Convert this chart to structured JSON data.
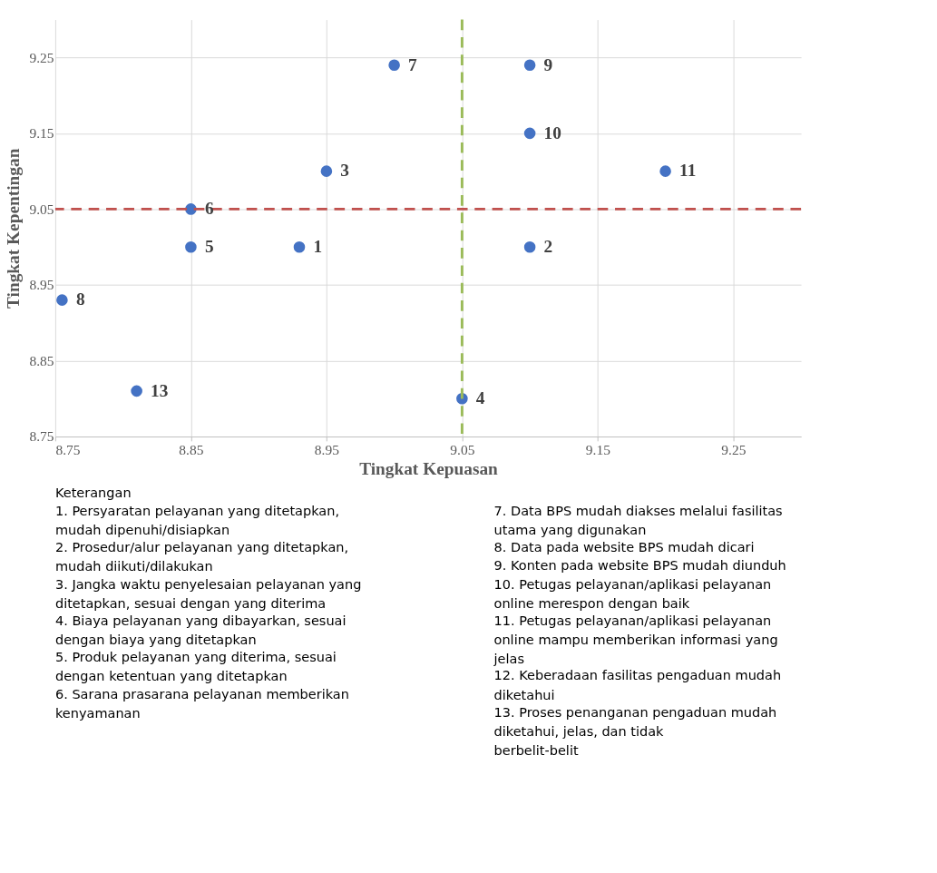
{
  "chart_data": {
    "type": "scatter",
    "xlabel": "Tingkat Kepuasan",
    "ylabel": "Tingkat Kepentingan",
    "x": [
      8.93,
      9.1,
      8.95,
      9.05,
      8.85,
      8.85,
      9.0,
      8.755,
      9.1,
      9.1,
      9.2,
      8.81
    ],
    "values": [
      9.0,
      9.0,
      9.1,
      8.8,
      9.0,
      9.05,
      9.24,
      8.93,
      9.24,
      9.15,
      9.1,
      8.81
    ],
    "color": "#4472c4",
    "marker": "circle",
    "xlim": [
      8.75,
      9.3
    ],
    "ylim": [
      8.75,
      9.3
    ],
    "xticks": [
      8.75,
      8.85,
      8.95,
      9.05,
      9.15,
      9.25
    ],
    "yticks": [
      8.75,
      8.85,
      8.95,
      9.05,
      9.15,
      9.25
    ],
    "grid": true,
    "ref_lines": [
      {
        "axis": "y",
        "value": 9.05,
        "label": null,
        "color": "#c0504d",
        "line_style": "dashed"
      },
      {
        "axis": "x",
        "value": 9.05,
        "label": null,
        "color": "#9bbb59",
        "line_style": "dashed"
      }
    ],
    "annotations": [
      {
        "text": "1",
        "x": 8.93,
        "y": 9.0
      },
      {
        "text": "2",
        "x": 9.1,
        "y": 9.0
      },
      {
        "text": "3",
        "x": 8.95,
        "y": 9.1
      },
      {
        "text": "4",
        "x": 9.05,
        "y": 8.8
      },
      {
        "text": "5",
        "x": 8.85,
        "y": 9.0
      },
      {
        "text": "6",
        "x": 8.85,
        "y": 9.05
      },
      {
        "text": "7",
        "x": 9.0,
        "y": 9.24
      },
      {
        "text": "8",
        "x": 8.755,
        "y": 8.93
      },
      {
        "text": "9",
        "x": 9.1,
        "y": 9.24
      },
      {
        "text": "10",
        "x": 9.1,
        "y": 9.15
      },
      {
        "text": "11",
        "x": 9.2,
        "y": 9.1
      },
      {
        "text": "13",
        "x": 8.81,
        "y": 8.81
      },
      "Keterangan",
      "1. Persyaratan pelayanan yang ditetapkan, mudah dipenuhi/disiapkan",
      "2. Prosedur/alur pelayanan yang ditetapkan, mudah diikuti/dilakukan",
      "3. Jangka waktu penyelesaian pelayanan yang ditetapkan, sesuai dengan yang diterima",
      "4. Biaya pelayanan yang dibayarkan, sesuai dengan biaya yang ditetapkan",
      "5. Produk pelayanan yang diterima, sesuai dengan ketentuan yang ditetapkan",
      "6. Sarana prasarana pelayanan memberikan kenyamanan",
      "7. Data BPS mudah diakses melalui fasilitas utama yang digunakan",
      "8. Data pada website BPS mudah dicari",
      "9. Konten pada website BPS mudah diunduh",
      "10. Petugas pelayanan/aplikasi pelayanan online merespon dengan baik",
      "11. Petugas pelayanan/aplikasi pelayanan online mampu memberikan informasi yang jelas",
      "12. Keberadaan fasilitas pengaduan mudah diketahui",
      "13. Proses penanganan pengaduan mudah diketahui, jelas, dan tidak berbelit-belit"
    ]
  }
}
